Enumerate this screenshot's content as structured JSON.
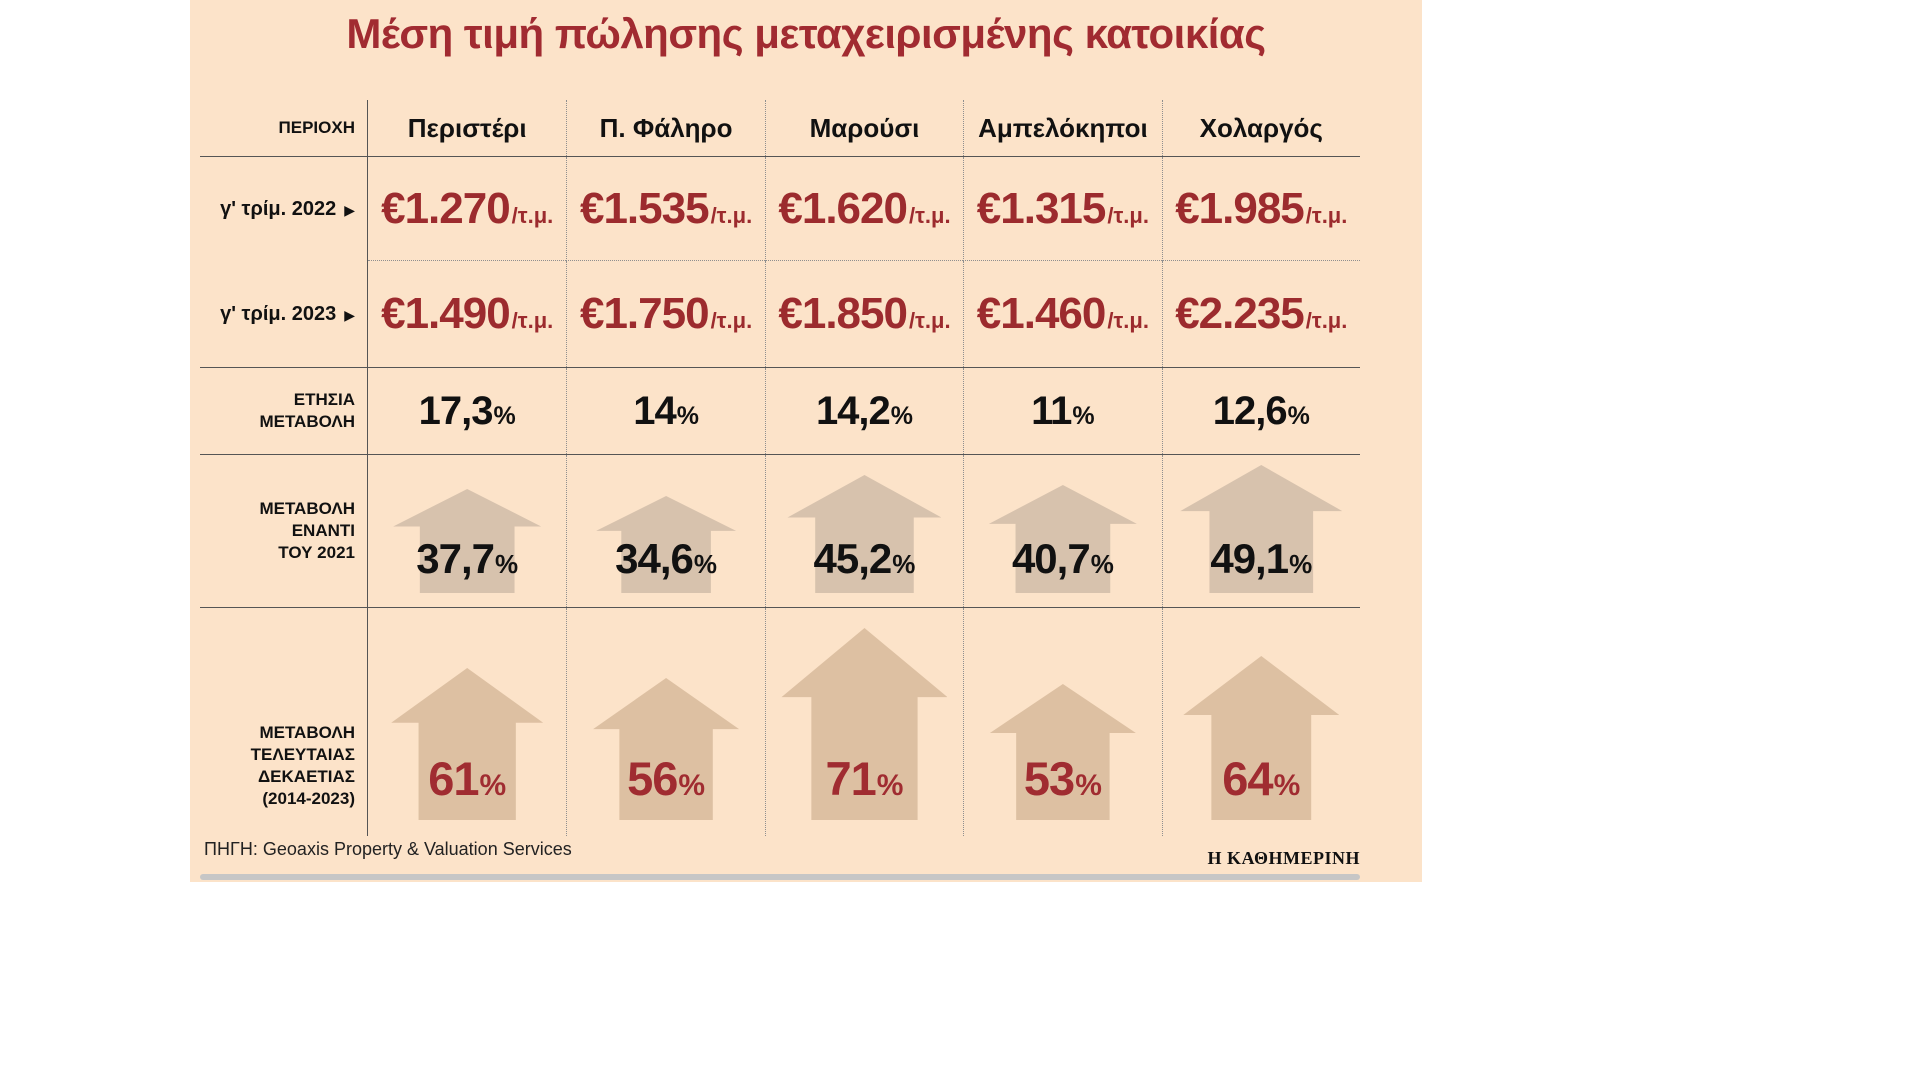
{
  "title": "Μέση τιμή πώλησης μεταχειρισμένης κατοικίας",
  "colors": {
    "panel_bg": "#fce3c9",
    "accent_red": "#9c2b2e",
    "title_red": "#a12b31",
    "house_tan_light": "#d7c2ad",
    "house_tan_dark": "#ddc0a2"
  },
  "table": {
    "region_header": "ΠΕΡΙΟΧΗ",
    "areas": [
      "Περιστέρι",
      "Π. Φάληρο",
      "Μαρούσι",
      "Αμπελόκηποι",
      "Χολαργός"
    ],
    "unit": "/τ.μ.",
    "percent_sign": "%",
    "arrow_icon": "▶",
    "rows": {
      "q3_2022": {
        "label": "γ' τρίμ. 2022",
        "values": [
          "€1.270",
          "€1.535",
          "€1.620",
          "€1.315",
          "€1.985"
        ]
      },
      "q3_2023": {
        "label": "γ' τρίμ. 2023",
        "values": [
          "€1.490",
          "€1.750",
          "€1.850",
          "€1.460",
          "€2.235"
        ]
      },
      "annual": {
        "label": "ΕΤΗΣΙΑ\nΜΕΤΑΒΟΛΗ",
        "values": [
          "17,3",
          "14",
          "14,2",
          "11",
          "12,6"
        ]
      },
      "vs2021": {
        "label": "ΜΕΤΑΒΟΛΗ\nΕΝΑΝΤΙ\nΤΟΥ 2021",
        "values": [
          "37,7",
          "34,6",
          "45,2",
          "40,7",
          "49,1"
        ]
      },
      "decade": {
        "label": "ΜΕΤΑΒΟΛΗ\nΤΕΛΕΥΤΑΙΑΣ\nΔΕΚΑΕΤΙΑΣ\n(2014-2023)",
        "values": [
          "61",
          "56",
          "71",
          "53",
          "64"
        ]
      }
    }
  },
  "source": "ΠΗΓΗ: Geoaxis Property & Valuation Services",
  "brand": "Η ΚΑΘΗΜΕΡΙΝΗ",
  "chart_data": {
    "type": "table",
    "title": "Μέση τιμή πώλησης μεταχειρισμένης κατοικίας",
    "categories": [
      "Περιστέρι",
      "Π. Φάληρο",
      "Μαρούσι",
      "Αμπελόκηποι",
      "Χολαργός"
    ],
    "series": [
      {
        "name": "γ' τρίμ. 2022 (€/τ.μ.)",
        "values": [
          1270,
          1535,
          1620,
          1315,
          1985
        ]
      },
      {
        "name": "γ' τρίμ. 2023 (€/τ.μ.)",
        "values": [
          1490,
          1750,
          1850,
          1460,
          2235
        ]
      },
      {
        "name": "ΕΤΗΣΙΑ ΜΕΤΑΒΟΛΗ (%)",
        "values": [
          17.3,
          14,
          14.2,
          11,
          12.6
        ]
      },
      {
        "name": "ΜΕΤΑΒΟΛΗ ΕΝΑΝΤΙ ΤΟΥ 2021 (%)",
        "values": [
          37.7,
          34.6,
          45.2,
          40.7,
          49.1
        ]
      },
      {
        "name": "ΜΕΤΑΒΟΛΗ ΤΕΛΕΥΤΑΙΑΣ ΔΕΚΑΕΤΙΑΣ 2014-2023 (%)",
        "values": [
          61,
          56,
          71,
          53,
          64
        ]
      }
    ],
    "source": "Geoaxis Property & Valuation Services",
    "notes": "Μεταβολές απεικονίζονται με εικονίδια σπιτιών με ύψος ανάλογο του ποσοστού"
  }
}
